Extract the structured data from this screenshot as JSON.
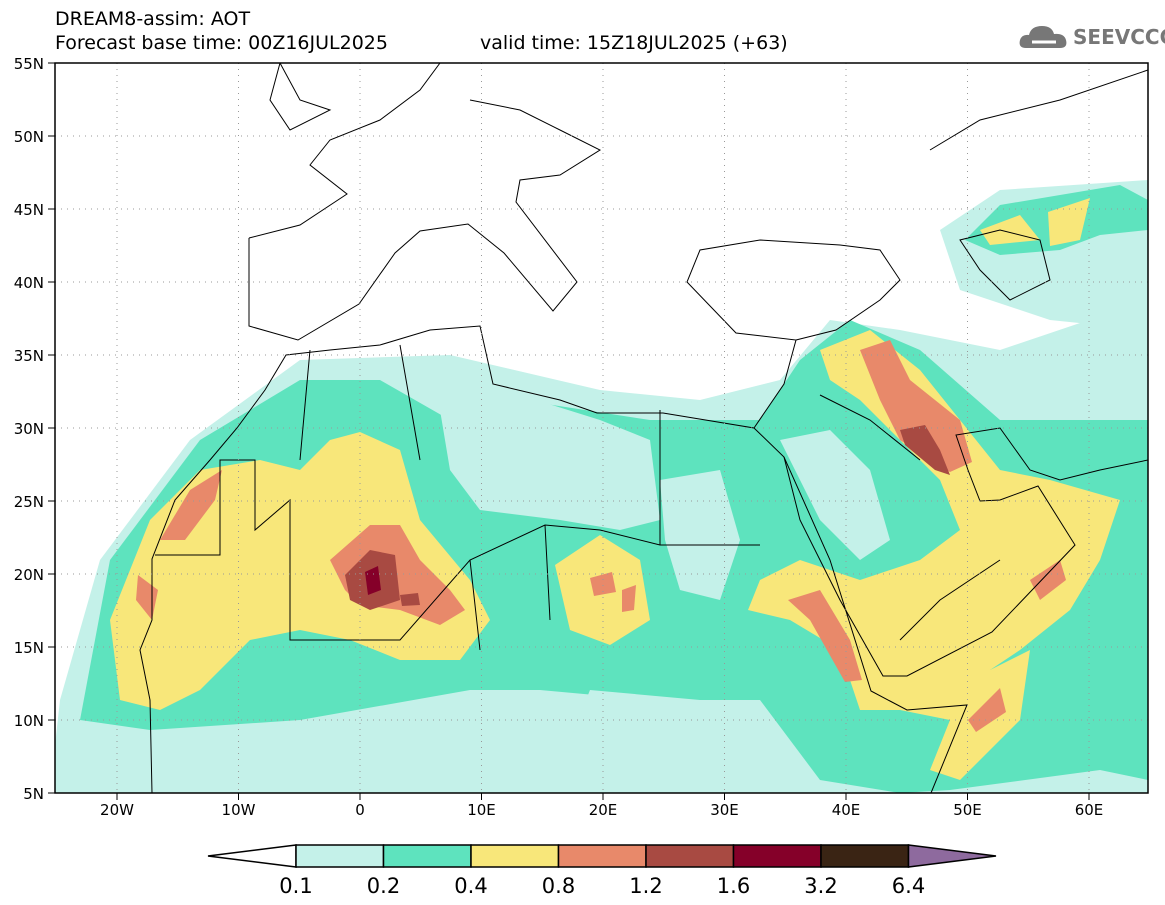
{
  "header": {
    "title": "DREAM8-assim: AOT",
    "base_time": "Forecast base time: 00Z16JUL2025",
    "valid_time": "valid time: 15Z18JUL2025 (+63)",
    "logo_text": "SEEVCCC"
  },
  "axes": {
    "lat_labels": [
      "55N",
      "50N",
      "45N",
      "40N",
      "35N",
      "30N",
      "25N",
      "20N",
      "15N",
      "10N",
      "5N"
    ],
    "lon_labels": [
      "20W",
      "10W",
      "0",
      "10E",
      "20E",
      "30E",
      "40E",
      "50E",
      "60E"
    ]
  },
  "colorbar": {
    "labels": [
      "0.1",
      "0.2",
      "0.4",
      "0.8",
      "1.2",
      "1.6",
      "3.2",
      "6.4"
    ],
    "colors": [
      "#ffffff",
      "#c4f1e9",
      "#5ee3be",
      "#f8e77a",
      "#e8896a",
      "#a84a42",
      "#850029",
      "#3a2414",
      "#8e6a9e"
    ]
  }
}
